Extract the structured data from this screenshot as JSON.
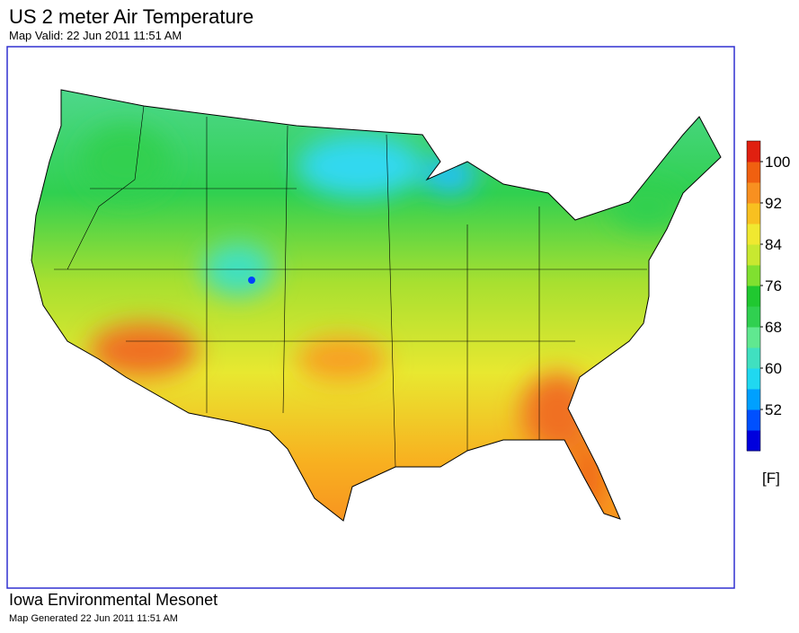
{
  "header": {
    "title": "US 2 meter Air Temperature",
    "subtitle": "Map Valid: 22 Jun 2011 11:51 AM"
  },
  "footer": {
    "source": "Iowa Environmental Mesonet",
    "generated": "Map Generated 22 Jun 2011 11:51 AM"
  },
  "colorbar": {
    "unit": "[F]",
    "lim": [
      44,
      104
    ],
    "ticks": [
      52,
      60,
      68,
      76,
      84,
      92,
      100
    ],
    "colors": [
      "#0000dd",
      "#0050ff",
      "#00a0ff",
      "#20d8f0",
      "#40e0c0",
      "#60e890",
      "#30d050",
      "#20c830",
      "#80e030",
      "#c8e830",
      "#f0e830",
      "#f8c020",
      "#f89020",
      "#f06010",
      "#e02010"
    ]
  }
}
